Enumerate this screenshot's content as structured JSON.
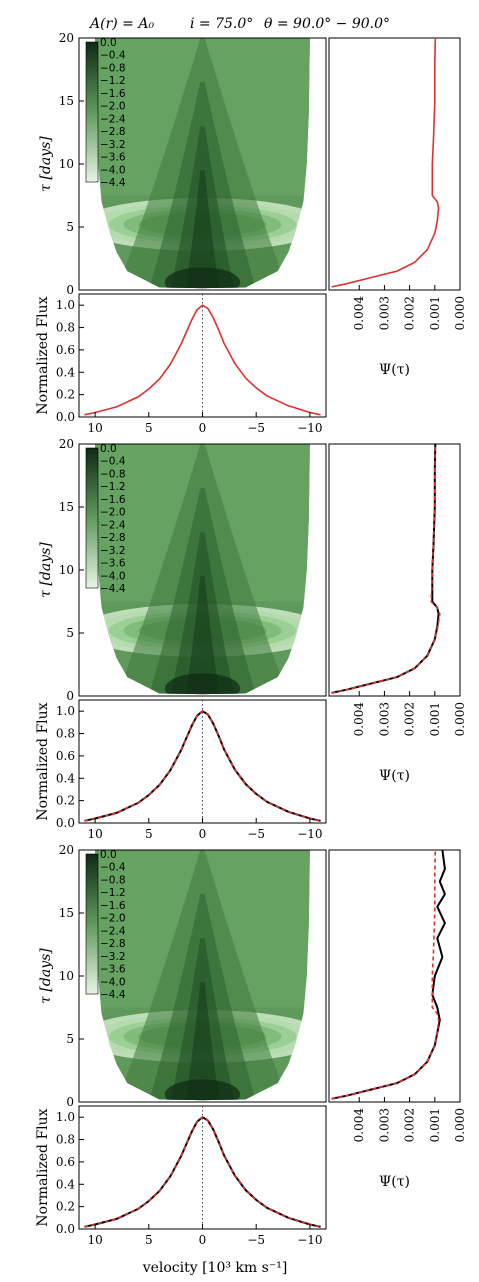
{
  "figure": {
    "title_parts": [
      "A(r) = A₀",
      "i = 75.0°",
      "θ = 90.0° − 90.0°"
    ],
    "shared_xlabel": "velocity [10³ km s⁻¹]",
    "colors": {
      "model_line": "#e03030",
      "data_line": "#000000",
      "green_dark": "#0e2a14",
      "green_light": "#e8f5e4",
      "panel_bg": "#ffffff"
    }
  },
  "colorbar": {
    "ticks": [
      "0.0",
      "−0.4",
      "−0.8",
      "−1.2",
      "−1.6",
      "−2.0",
      "−2.4",
      "−2.8",
      "−3.2",
      "−3.6",
      "−4.0",
      "−4.4"
    ]
  },
  "chart_data": [
    {
      "type": "heatmap",
      "panel": "transfer-function-1",
      "xlabel": "",
      "ylabel": "τ [days]",
      "xlim": [
        11.5,
        -11.5
      ],
      "ylim": [
        0,
        20
      ],
      "yticks": [
        "0",
        "5",
        "10",
        "15",
        "20"
      ],
      "colorbar_range": [
        -4.4,
        0.0
      ],
      "boundary_half_width": [
        [
          0.2,
          4
        ],
        [
          1.5,
          7
        ],
        [
          3.0,
          8
        ],
        [
          4.5,
          8.6
        ],
        [
          7.0,
          9.4
        ],
        [
          10.0,
          9.7
        ],
        [
          14.0,
          9.9
        ],
        [
          20.0,
          10.0
        ]
      ]
    },
    {
      "type": "line",
      "panel": "delay-distribution-1",
      "xlabel": "Ψ(τ)",
      "ylabel": "",
      "xlim": [
        0.0052,
        0.0
      ],
      "ylim": [
        0,
        20
      ],
      "xticks": [
        "0.004",
        "0.003",
        "0.002",
        "0.001",
        "0.000"
      ],
      "series": [
        {
          "role": "model",
          "x": [
            0.0051,
            0.0045,
            0.0035,
            0.0025,
            0.0018,
            0.0013,
            0.001,
            0.0009,
            0.00085,
            0.0009,
            0.0011,
            0.0011,
            0.0011,
            0.00105,
            0.001,
            0.001,
            0.00098
          ],
          "y": [
            0.25,
            0.5,
            1.0,
            1.5,
            2.2,
            3.2,
            4.5,
            5.5,
            6.5,
            7.0,
            7.5,
            8.5,
            10,
            12,
            15,
            18,
            20
          ]
        }
      ]
    },
    {
      "type": "line",
      "panel": "line-profile-1",
      "xlabel": "",
      "ylabel": "Normalized Flux",
      "xlim": [
        11.5,
        -11.5
      ],
      "ylim": [
        0,
        1.1
      ],
      "xticks": [
        "10",
        "5",
        "0",
        "−5",
        "−10"
      ],
      "yticks": [
        "0.0",
        "0.2",
        "0.4",
        "0.6",
        "0.8",
        "1.0"
      ],
      "series": [
        {
          "role": "model",
          "x": [
            11,
            10,
            8,
            6,
            5,
            4,
            3,
            2,
            1.5,
            1,
            0.5,
            0,
            -0.5,
            -1,
            -1.5,
            -2,
            -3,
            -4,
            -5,
            -6,
            -8,
            -10,
            -11
          ],
          "y": [
            0.02,
            0.04,
            0.09,
            0.18,
            0.25,
            0.34,
            0.47,
            0.65,
            0.76,
            0.87,
            0.96,
            1.0,
            0.97,
            0.89,
            0.78,
            0.66,
            0.48,
            0.35,
            0.26,
            0.19,
            0.1,
            0.04,
            0.02
          ]
        }
      ]
    },
    {
      "type": "heatmap",
      "panel": "transfer-function-2",
      "xlabel": "",
      "ylabel": "τ [days]",
      "xlim": [
        11.5,
        -11.5
      ],
      "ylim": [
        0,
        20
      ],
      "yticks": [
        "0",
        "5",
        "10",
        "15",
        "20"
      ],
      "colorbar_range": [
        -4.4,
        0.0
      ],
      "boundary_half_width": [
        [
          0.2,
          4
        ],
        [
          1.5,
          7
        ],
        [
          3.0,
          8
        ],
        [
          4.5,
          8.6
        ],
        [
          7.0,
          9.4
        ],
        [
          10.0,
          9.7
        ],
        [
          14.0,
          9.9
        ],
        [
          20.0,
          10.0
        ]
      ]
    },
    {
      "type": "line",
      "panel": "delay-distribution-2",
      "xlabel": "Ψ(τ)",
      "ylabel": "",
      "xlim": [
        0.0052,
        0.0
      ],
      "ylim": [
        0,
        20
      ],
      "xticks": [
        "0.004",
        "0.003",
        "0.002",
        "0.001",
        "0.000"
      ],
      "series": [
        {
          "role": "data",
          "x": [
            0.0051,
            0.0045,
            0.0035,
            0.0025,
            0.0018,
            0.0013,
            0.001,
            0.0009,
            0.00085,
            0.0009,
            0.0011,
            0.0011,
            0.0011,
            0.00105,
            0.001,
            0.001,
            0.00098
          ],
          "y": [
            0.25,
            0.5,
            1.0,
            1.5,
            2.2,
            3.2,
            4.5,
            5.5,
            6.5,
            7.0,
            7.5,
            8.5,
            10,
            12,
            15,
            18,
            20
          ]
        },
        {
          "role": "model",
          "dashed": true,
          "x": [
            0.0051,
            0.0045,
            0.0035,
            0.0025,
            0.0018,
            0.0013,
            0.001,
            0.00088,
            0.0008,
            0.0009,
            0.00115,
            0.00112,
            0.0011,
            0.00106,
            0.00101,
            0.001,
            0.00098
          ],
          "y": [
            0.25,
            0.5,
            1.0,
            1.5,
            2.2,
            3.2,
            4.5,
            5.5,
            6.5,
            7.0,
            7.5,
            8.5,
            10,
            12,
            15,
            18,
            20
          ]
        }
      ]
    },
    {
      "type": "line",
      "panel": "line-profile-2",
      "xlabel": "",
      "ylabel": "Normalized Flux",
      "xlim": [
        11.5,
        -11.5
      ],
      "ylim": [
        0,
        1.1
      ],
      "xticks": [
        "10",
        "5",
        "0",
        "−5",
        "−10"
      ],
      "yticks": [
        "0.0",
        "0.2",
        "0.4",
        "0.6",
        "0.8",
        "1.0"
      ],
      "series": [
        {
          "role": "data",
          "x": [
            11,
            10,
            8,
            6,
            5,
            4,
            3,
            2,
            1.5,
            1,
            0.5,
            0,
            -0.5,
            -1,
            -1.5,
            -2,
            -3,
            -4,
            -5,
            -6,
            -8,
            -10,
            -11
          ],
          "y": [
            0.02,
            0.04,
            0.09,
            0.18,
            0.25,
            0.34,
            0.47,
            0.65,
            0.76,
            0.87,
            0.96,
            1.0,
            0.97,
            0.89,
            0.78,
            0.66,
            0.48,
            0.35,
            0.26,
            0.19,
            0.1,
            0.04,
            0.02
          ]
        },
        {
          "role": "model",
          "dashed": true,
          "x": [
            11,
            10,
            8,
            6,
            5,
            4,
            3,
            2,
            1.5,
            1,
            0.5,
            0,
            -0.5,
            -1,
            -1.5,
            -2,
            -3,
            -4,
            -5,
            -6,
            -8,
            -10,
            -11
          ],
          "y": [
            0.02,
            0.04,
            0.09,
            0.18,
            0.25,
            0.34,
            0.47,
            0.65,
            0.76,
            0.87,
            0.96,
            1.0,
            0.97,
            0.89,
            0.78,
            0.66,
            0.48,
            0.35,
            0.26,
            0.19,
            0.1,
            0.04,
            0.02
          ]
        }
      ]
    },
    {
      "type": "heatmap",
      "panel": "transfer-function-3",
      "xlabel": "",
      "ylabel": "τ [days]",
      "xlim": [
        11.5,
        -11.5
      ],
      "ylim": [
        0,
        20
      ],
      "yticks": [
        "0",
        "5",
        "10",
        "15",
        "20"
      ],
      "colorbar_range": [
        -4.4,
        0.0
      ],
      "boundary_half_width": [
        [
          0.2,
          4
        ],
        [
          1.5,
          7
        ],
        [
          3.0,
          8
        ],
        [
          4.5,
          8.6
        ],
        [
          7.0,
          9.4
        ],
        [
          10.0,
          9.7
        ],
        [
          14.0,
          9.9
        ],
        [
          20.0,
          10.0
        ]
      ]
    },
    {
      "type": "line",
      "panel": "delay-distribution-3",
      "xlabel": "Ψ(τ)",
      "ylabel": "",
      "xlim": [
        0.0052,
        0.0
      ],
      "ylim": [
        0,
        20
      ],
      "xticks": [
        "0.004",
        "0.003",
        "0.002",
        "0.001",
        "0.000"
      ],
      "series": [
        {
          "role": "data",
          "x": [
            0.0051,
            0.0045,
            0.0035,
            0.0025,
            0.0018,
            0.0013,
            0.001,
            0.0009,
            0.0008,
            0.0009,
            0.0011,
            0.001,
            0.0007,
            0.0009,
            0.0006,
            0.0009,
            0.0006,
            0.0008,
            0.0006,
            0.0007
          ],
          "y": [
            0.25,
            0.5,
            1.0,
            1.5,
            2.2,
            3.2,
            4.5,
            5.5,
            6.5,
            7.5,
            8.5,
            10,
            11.5,
            13,
            14.2,
            15.5,
            16.5,
            17.5,
            18.5,
            20
          ]
        },
        {
          "role": "model",
          "dashed": true,
          "x": [
            0.0051,
            0.0045,
            0.0035,
            0.0025,
            0.0018,
            0.0013,
            0.001,
            0.0009,
            0.00085,
            0.0009,
            0.0011,
            0.0011,
            0.0011,
            0.00105,
            0.001,
            0.001,
            0.00098
          ],
          "y": [
            0.25,
            0.5,
            1.0,
            1.5,
            2.2,
            3.2,
            4.5,
            5.5,
            6.5,
            7.0,
            7.5,
            8.5,
            10,
            12,
            15,
            18,
            20
          ]
        }
      ]
    },
    {
      "type": "line",
      "panel": "line-profile-3",
      "xlabel": "velocity [10³ km s⁻¹]",
      "ylabel": "Normalized Flux",
      "xlim": [
        11.5,
        -11.5
      ],
      "ylim": [
        0,
        1.1
      ],
      "xticks": [
        "10",
        "5",
        "0",
        "−5",
        "−10"
      ],
      "yticks": [
        "0.0",
        "0.2",
        "0.4",
        "0.6",
        "0.8",
        "1.0"
      ],
      "series": [
        {
          "role": "data",
          "x": [
            11,
            10,
            8,
            6,
            5,
            4,
            3,
            2,
            1.5,
            1,
            0.5,
            0,
            -0.5,
            -1,
            -1.5,
            -2,
            -3,
            -4,
            -5,
            -6,
            -8,
            -10,
            -11
          ],
          "y": [
            0.02,
            0.04,
            0.09,
            0.18,
            0.25,
            0.34,
            0.47,
            0.65,
            0.76,
            0.87,
            0.96,
            1.0,
            0.97,
            0.89,
            0.78,
            0.66,
            0.48,
            0.35,
            0.26,
            0.19,
            0.1,
            0.04,
            0.02
          ]
        },
        {
          "role": "model",
          "dashed": true,
          "x": [
            11,
            10,
            8,
            6,
            5,
            4,
            3,
            2,
            1.5,
            1,
            0.5,
            0,
            -0.5,
            -1,
            -1.5,
            -2,
            -3,
            -4,
            -5,
            -6,
            -8,
            -10,
            -11
          ],
          "y": [
            0.02,
            0.04,
            0.09,
            0.18,
            0.25,
            0.34,
            0.47,
            0.65,
            0.76,
            0.87,
            0.96,
            1.0,
            0.97,
            0.89,
            0.78,
            0.66,
            0.48,
            0.35,
            0.26,
            0.19,
            0.1,
            0.04,
            0.02
          ]
        }
      ]
    }
  ]
}
